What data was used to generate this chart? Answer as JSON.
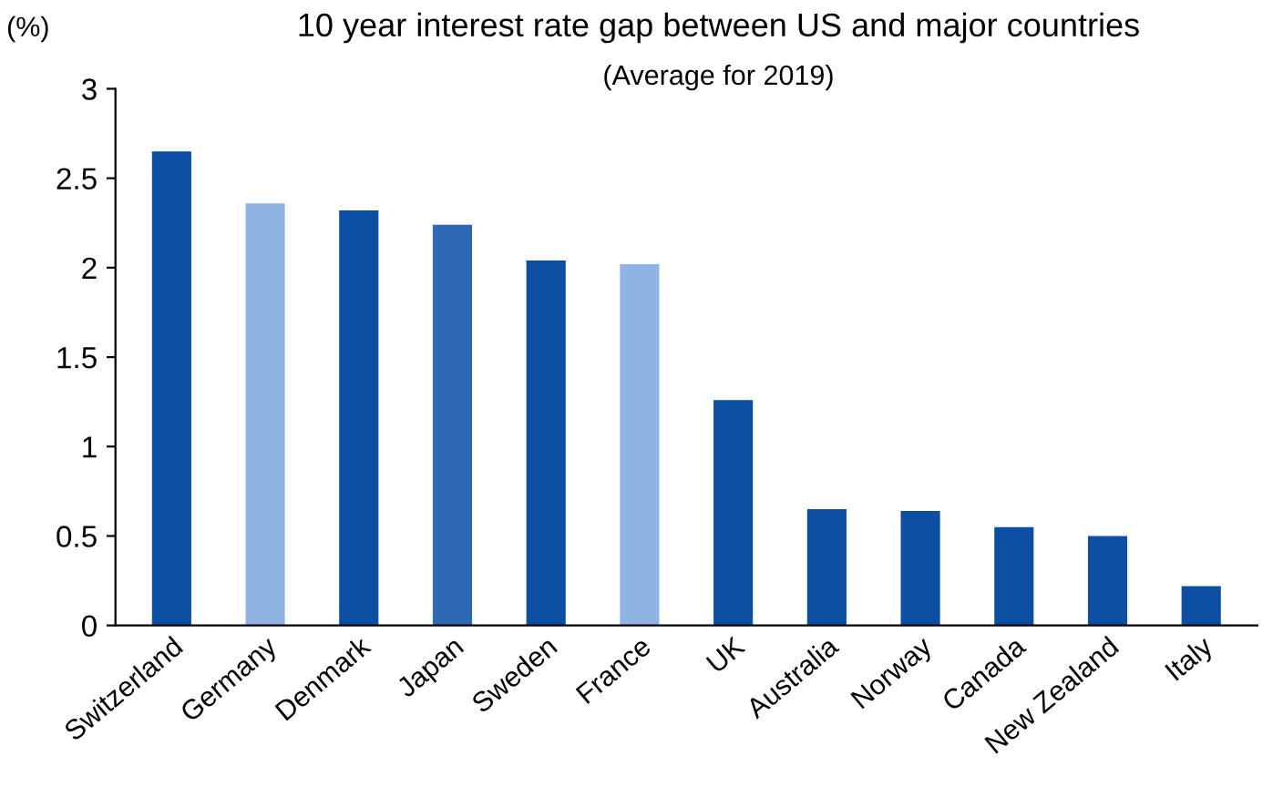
{
  "chart_data": {
    "type": "bar",
    "title": "10 year interest rate gap between US and major countries",
    "subtitle": "(Average for 2019)",
    "ylabel": "(%)",
    "categories": [
      "Switzerland",
      "Germany",
      "Denmark",
      "Japan",
      "Sweden",
      "France",
      "UK",
      "Australia",
      "Norway",
      "Canada",
      "New Zealand",
      "Italy"
    ],
    "values": [
      2.65,
      2.36,
      2.32,
      2.24,
      2.04,
      2.02,
      1.26,
      0.65,
      0.64,
      0.55,
      0.5,
      0.22
    ],
    "colors": [
      "#0b4ea2",
      "#8fb4e3",
      "#0b4ea2",
      "#2f68b5",
      "#0b4ea2",
      "#8fb4e3",
      "#0b4ea2",
      "#0b4ea2",
      "#0b4ea2",
      "#0b4ea2",
      "#0b4ea2",
      "#0b4ea2"
    ],
    "ylim": [
      0,
      3
    ],
    "yticks": [
      0,
      0.5,
      1,
      1.5,
      2,
      2.5,
      3
    ],
    "grid": false
  }
}
